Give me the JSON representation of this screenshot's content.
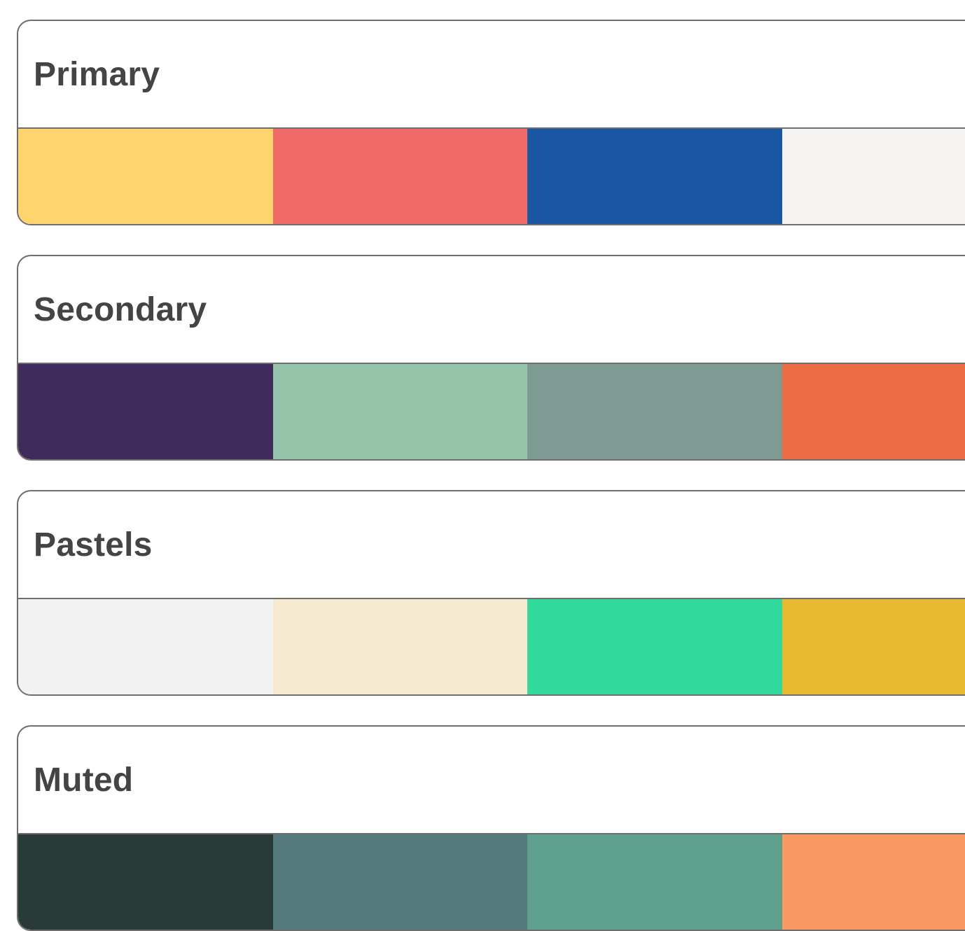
{
  "palettes": [
    {
      "title": "Primary",
      "swatches": [
        "#FFD36E",
        "#F06B68",
        "#1A56A2",
        "#F4F3F1"
      ]
    },
    {
      "title": "Secondary",
      "swatches": [
        "#3E2B5C",
        "#95C4AA",
        "#7D9A93",
        "#EC6D44"
      ]
    },
    {
      "title": "Pastels",
      "swatches": [
        "#F2F2F2",
        "#F5E9D0",
        "#32D99D",
        "#E8BA31"
      ]
    },
    {
      "title": "Muted",
      "swatches": [
        "#283B39",
        "#557A7D",
        "#5F9F8E",
        "#F99A63"
      ]
    }
  ]
}
